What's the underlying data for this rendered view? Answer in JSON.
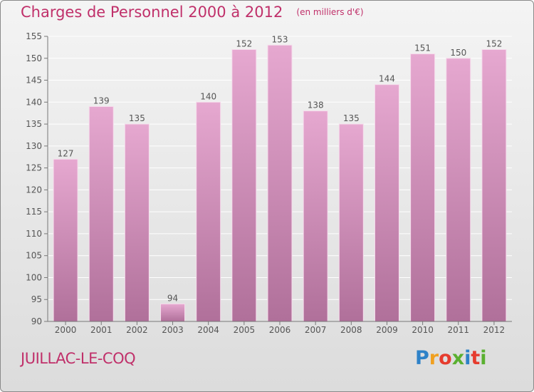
{
  "title": "Charges de Personnel 2000 à 2012",
  "subtitle": "(en milliers d'€)",
  "commune": "JUILLAC-LE-COQ",
  "logo_text": "Proxiti",
  "colors": {
    "title": "#c0306a",
    "bar_top": "#e6a8d0",
    "bar_bottom": "#b0709a",
    "axis_text": "#555555",
    "grid": "#ffffff"
  },
  "chart_data": {
    "type": "bar",
    "categories": [
      "2000",
      "2001",
      "2002",
      "2003",
      "2004",
      "2005",
      "2006",
      "2007",
      "2008",
      "2009",
      "2010",
      "2011",
      "2012"
    ],
    "values": [
      127,
      139,
      135,
      94,
      140,
      152,
      153,
      138,
      135,
      144,
      151,
      150,
      152
    ],
    "ylim": [
      90,
      155
    ],
    "yticks": [
      90,
      95,
      100,
      105,
      110,
      115,
      120,
      125,
      130,
      135,
      140,
      145,
      150,
      155
    ],
    "grid": true,
    "title": "Charges de Personnel 2000 à 2012",
    "subtitle": "(en milliers d'€)",
    "xlabel": "",
    "ylabel": ""
  }
}
